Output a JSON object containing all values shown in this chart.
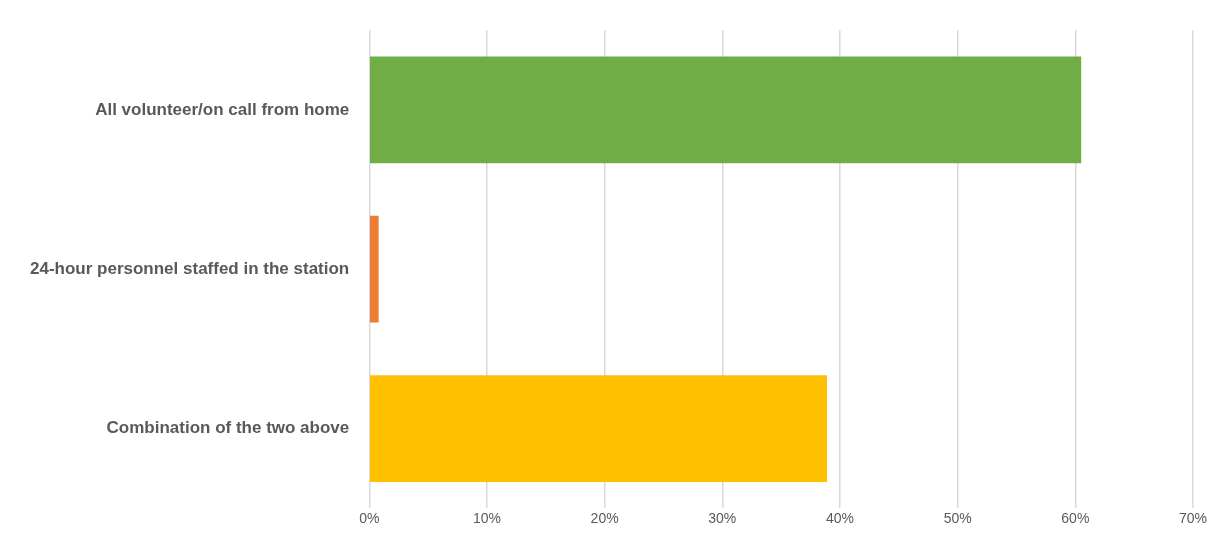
{
  "chart_data": {
    "type": "bar",
    "orientation": "horizontal",
    "categories": [
      "All volunteer/on call from home",
      "24-hour personnel staffed in the station",
      "Combination of the two above"
    ],
    "values": [
      60.5,
      0.8,
      38.9
    ],
    "colors": [
      "#70ad47",
      "#ed7d31",
      "#ffc000"
    ],
    "xlim": [
      0,
      70
    ],
    "xticks": [
      {
        "value": 0,
        "label": "0%"
      },
      {
        "value": 10,
        "label": "10%"
      },
      {
        "value": 20,
        "label": "20%"
      },
      {
        "value": 30,
        "label": "30%"
      },
      {
        "value": 40,
        "label": "40%"
      },
      {
        "value": 50,
        "label": "50%"
      },
      {
        "value": 60,
        "label": "60%"
      },
      {
        "value": 70,
        "label": "70%"
      }
    ],
    "grid": "x"
  }
}
